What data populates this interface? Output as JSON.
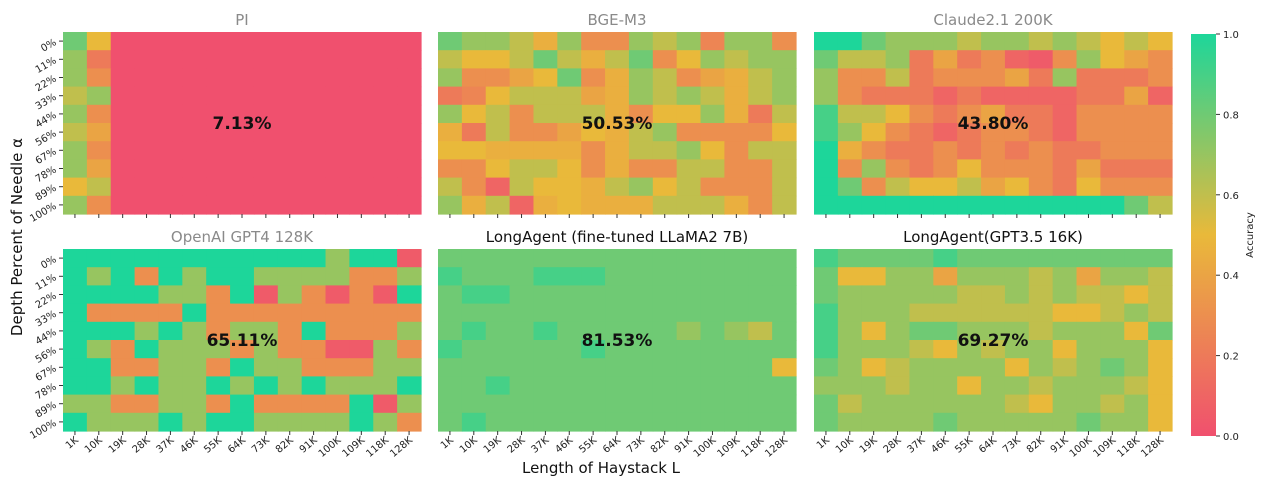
{
  "chart_data": {
    "type": "heatmap",
    "xlabel": "Length of Haystack L",
    "ylabel": "Depth Percent of Needle α",
    "x_ticks": [
      "1K",
      "10K",
      "19K",
      "28K",
      "37K",
      "46K",
      "55K",
      "64K",
      "73K",
      "82K",
      "91K",
      "100K",
      "109K",
      "118K",
      "128K"
    ],
    "y_ticks": [
      "0%",
      "11%",
      "22%",
      "33%",
      "44%",
      "56%",
      "67%",
      "78%",
      "89%",
      "100%"
    ],
    "colorbar": {
      "label": "Accuracy",
      "ticks": [
        "0.0",
        "0.2",
        "0.4",
        "0.6",
        "0.8",
        "1.0"
      ],
      "range": [
        0,
        1
      ]
    },
    "colors": {
      "low": "#f0506e",
      "mid": "#e9b93a",
      "high": "#1dd69a"
    },
    "panels": [
      {
        "title": "PI",
        "title_color": "gray",
        "accuracy_label": "7.13%",
        "values": [
          [
            0.8,
            0.5,
            0,
            0,
            0,
            0,
            0,
            0,
            0,
            0,
            0,
            0,
            0,
            0,
            0
          ],
          [
            0.7,
            0.2,
            0,
            0,
            0,
            0,
            0,
            0,
            0,
            0,
            0,
            0,
            0,
            0,
            0
          ],
          [
            0.7,
            0.3,
            0,
            0,
            0,
            0,
            0,
            0,
            0,
            0,
            0,
            0,
            0,
            0,
            0
          ],
          [
            0.6,
            0.7,
            0,
            0,
            0,
            0,
            0,
            0,
            0,
            0,
            0,
            0,
            0,
            0,
            0
          ],
          [
            0.7,
            0.3,
            0,
            0,
            0,
            0,
            0,
            0,
            0,
            0,
            0,
            0,
            0,
            0,
            0
          ],
          [
            0.6,
            0.4,
            0,
            0,
            0,
            0,
            0,
            0,
            0,
            0,
            0,
            0,
            0,
            0,
            0
          ],
          [
            0.7,
            0.3,
            0,
            0,
            0,
            0,
            0,
            0,
            0,
            0,
            0,
            0,
            0,
            0,
            0
          ],
          [
            0.7,
            0.4,
            0,
            0,
            0,
            0,
            0,
            0,
            0,
            0,
            0,
            0,
            0,
            0,
            0
          ],
          [
            0.5,
            0.6,
            0,
            0,
            0,
            0,
            0,
            0,
            0,
            0,
            0,
            0,
            0,
            0,
            0
          ],
          [
            0.7,
            0.3,
            0,
            0,
            0,
            0,
            0,
            0,
            0,
            0,
            0,
            0,
            0,
            0,
            0
          ]
        ]
      },
      {
        "title": "BGE-M3",
        "title_color": "gray",
        "accuracy_label": "50.53%",
        "values": [
          [
            0.8,
            0.7,
            0.7,
            0.6,
            0.45,
            0.7,
            0.3,
            0.3,
            0.7,
            0.6,
            0.7,
            0.25,
            0.7,
            0.7,
            0.3
          ],
          [
            0.6,
            0.5,
            0.5,
            0.6,
            0.8,
            0.6,
            0.45,
            0.6,
            0.8,
            0.3,
            0.5,
            0.7,
            0.6,
            0.7,
            0.7
          ],
          [
            0.7,
            0.3,
            0.3,
            0.4,
            0.5,
            0.8,
            0.3,
            0.45,
            0.7,
            0.6,
            0.3,
            0.4,
            0.45,
            0.6,
            0.7
          ],
          [
            0.2,
            0.25,
            0.5,
            0.6,
            0.6,
            0.6,
            0.4,
            0.45,
            0.7,
            0.6,
            0.7,
            0.6,
            0.45,
            0.6,
            0.7
          ],
          [
            0.7,
            0.5,
            0.6,
            0.3,
            0.6,
            0.6,
            0.6,
            0.45,
            0.3,
            0.5,
            0.5,
            0.7,
            0.45,
            0.2,
            0.6
          ],
          [
            0.45,
            0.2,
            0.6,
            0.3,
            0.3,
            0.4,
            0.5,
            0.45,
            0.6,
            0.7,
            0.3,
            0.3,
            0.3,
            0.3,
            0.5
          ],
          [
            0.5,
            0.5,
            0.45,
            0.45,
            0.45,
            0.45,
            0.3,
            0.45,
            0.6,
            0.6,
            0.7,
            0.5,
            0.3,
            0.6,
            0.6
          ],
          [
            0.3,
            0.3,
            0.5,
            0.6,
            0.6,
            0.5,
            0.3,
            0.45,
            0.3,
            0.3,
            0.6,
            0.6,
            0.3,
            0.3,
            0.6
          ],
          [
            0.6,
            0.3,
            0.1,
            0.6,
            0.5,
            0.5,
            0.45,
            0.6,
            0.7,
            0.5,
            0.6,
            0.3,
            0.3,
            0.3,
            0.6
          ],
          [
            0.7,
            0.45,
            0.6,
            0.1,
            0.45,
            0.5,
            0.45,
            0.45,
            0.45,
            0.6,
            0.6,
            0.6,
            0.45,
            0.3,
            0.6
          ]
        ]
      },
      {
        "title": "Claude2.1 200K",
        "title_color": "gray",
        "accuracy_label": "43.80%",
        "values": [
          [
            1,
            1,
            0.8,
            0.7,
            0.7,
            0.7,
            0.6,
            0.7,
            0.7,
            0.6,
            0.7,
            0.6,
            0.5,
            0.6,
            0.5
          ],
          [
            0.8,
            0.6,
            0.6,
            0.7,
            0.2,
            0.4,
            0.2,
            0.3,
            0.1,
            0.05,
            0.3,
            0.7,
            0.5,
            0.4,
            0.3
          ],
          [
            0.7,
            0.3,
            0.3,
            0.6,
            0.2,
            0.3,
            0.3,
            0.3,
            0.4,
            0.2,
            0.7,
            0.2,
            0.2,
            0.2,
            0.3
          ],
          [
            0.7,
            0.3,
            0.2,
            0.2,
            0.2,
            0.1,
            0.2,
            0.1,
            0.1,
            0.1,
            0.1,
            0.2,
            0.2,
            0.4,
            0.1
          ],
          [
            0.9,
            0.6,
            0.6,
            0.5,
            0.3,
            0.2,
            0.3,
            0.4,
            0.2,
            0.2,
            0.1,
            0.3,
            0.3,
            0.3,
            0.3
          ],
          [
            0.9,
            0.7,
            0.5,
            0.3,
            0.2,
            0.1,
            0.2,
            0.3,
            0.3,
            0.2,
            0.1,
            0.3,
            0.3,
            0.3,
            0.3
          ],
          [
            1,
            0.45,
            0.3,
            0.2,
            0.2,
            0.3,
            0.2,
            0.3,
            0.2,
            0.3,
            0.2,
            0.2,
            0.3,
            0.3,
            0.3
          ],
          [
            1,
            0.3,
            0.7,
            0.3,
            0.2,
            0.3,
            0.5,
            0.3,
            0.3,
            0.3,
            0.2,
            0.4,
            0.2,
            0.2,
            0.2
          ],
          [
            1,
            0.8,
            0.3,
            0.6,
            0.5,
            0.5,
            0.6,
            0.4,
            0.5,
            0.3,
            0.2,
            0.5,
            0.3,
            0.3,
            0.3
          ],
          [
            1,
            1,
            1,
            1,
            1,
            1,
            1,
            1,
            1,
            1,
            1,
            1,
            1,
            0.8,
            0.6
          ]
        ]
      },
      {
        "title": "OpenAI GPT4 128K",
        "title_color": "gray",
        "accuracy_label": "65.11%",
        "values": [
          [
            1,
            1,
            1,
            1,
            1,
            1,
            1,
            1,
            1,
            1,
            1,
            0.7,
            1,
            1,
            0.05
          ],
          [
            1,
            0.7,
            1,
            0.3,
            1,
            0.7,
            1,
            1,
            0.7,
            0.7,
            0.7,
            0.7,
            0.3,
            0.3,
            0.7
          ],
          [
            1,
            1,
            1,
            1,
            0.7,
            0.7,
            0.3,
            1,
            0.05,
            0.7,
            0.3,
            0.05,
            0.3,
            0.05,
            1
          ],
          [
            1,
            0.3,
            0.3,
            0.3,
            0.3,
            1,
            0.3,
            0.3,
            0.3,
            0.3,
            0.3,
            0.3,
            0.3,
            0.3,
            0.3
          ],
          [
            1,
            1,
            1,
            0.7,
            1,
            0.7,
            0.3,
            0.7,
            0.7,
            0.3,
            1,
            0.3,
            0.3,
            0.3,
            0.7
          ],
          [
            1,
            0.7,
            0.3,
            1,
            0.7,
            0.7,
            0.7,
            0.3,
            0.7,
            0.3,
            0.3,
            0.05,
            0.05,
            0.7,
            0.3
          ],
          [
            1,
            1,
            0.3,
            0.3,
            0.7,
            0.7,
            0.3,
            1,
            0.7,
            0.7,
            0.3,
            0.3,
            0.3,
            0.7,
            0.7
          ],
          [
            1,
            1,
            0.7,
            1,
            0.7,
            0.7,
            1,
            0.7,
            1,
            0.7,
            1,
            0.7,
            0.7,
            0.7,
            1
          ],
          [
            0.7,
            0.7,
            0.3,
            0.3,
            0.7,
            0.7,
            0.3,
            1,
            0.3,
            0.3,
            0.3,
            0.3,
            1,
            0.05,
            0.7
          ],
          [
            1,
            0.7,
            0.7,
            0.7,
            1,
            0.7,
            1,
            1,
            0.7,
            0.7,
            0.7,
            0.7,
            1,
            0.7,
            0.3
          ]
        ]
      },
      {
        "title": "LongAgent (fine-tuned LLaMA2 7B)",
        "title_color": "dark",
        "accuracy_label": "81.53%",
        "values": [
          [
            0.8,
            0.8,
            0.8,
            0.8,
            0.8,
            0.8,
            0.8,
            0.8,
            0.8,
            0.8,
            0.8,
            0.8,
            0.8,
            0.8,
            0.8
          ],
          [
            0.9,
            0.8,
            0.8,
            0.8,
            0.9,
            0.9,
            0.9,
            0.8,
            0.8,
            0.8,
            0.8,
            0.8,
            0.8,
            0.8,
            0.8
          ],
          [
            0.8,
            0.9,
            0.9,
            0.8,
            0.8,
            0.8,
            0.8,
            0.8,
            0.8,
            0.8,
            0.8,
            0.8,
            0.8,
            0.8,
            0.8
          ],
          [
            0.8,
            0.8,
            0.8,
            0.8,
            0.8,
            0.8,
            0.8,
            0.8,
            0.8,
            0.8,
            0.8,
            0.8,
            0.8,
            0.8,
            0.8
          ],
          [
            0.8,
            0.9,
            0.8,
            0.8,
            0.9,
            0.8,
            0.8,
            0.8,
            0.8,
            0.8,
            0.7,
            0.8,
            0.7,
            0.6,
            0.8
          ],
          [
            0.9,
            0.8,
            0.8,
            0.8,
            0.8,
            0.8,
            0.9,
            0.8,
            0.8,
            0.8,
            0.8,
            0.8,
            0.8,
            0.8,
            0.8
          ],
          [
            0.8,
            0.8,
            0.8,
            0.8,
            0.8,
            0.8,
            0.8,
            0.8,
            0.8,
            0.8,
            0.8,
            0.8,
            0.8,
            0.8,
            0.5
          ],
          [
            0.8,
            0.8,
            0.9,
            0.8,
            0.8,
            0.8,
            0.8,
            0.8,
            0.8,
            0.8,
            0.8,
            0.8,
            0.8,
            0.8,
            0.8
          ],
          [
            0.8,
            0.8,
            0.8,
            0.8,
            0.8,
            0.8,
            0.8,
            0.8,
            0.8,
            0.8,
            0.8,
            0.8,
            0.8,
            0.8,
            0.8
          ],
          [
            0.8,
            0.9,
            0.8,
            0.8,
            0.8,
            0.8,
            0.8,
            0.8,
            0.8,
            0.8,
            0.8,
            0.8,
            0.8,
            0.8,
            0.8
          ]
        ]
      },
      {
        "title": "LongAgent(GPT3.5 16K)",
        "title_color": "dark",
        "accuracy_label": "69.27%",
        "values": [
          [
            0.9,
            0.8,
            0.8,
            0.8,
            0.8,
            0.9,
            0.8,
            0.8,
            0.8,
            0.8,
            0.8,
            0.8,
            0.8,
            0.8,
            0.8
          ],
          [
            0.8,
            0.5,
            0.5,
            0.7,
            0.7,
            0.4,
            0.7,
            0.7,
            0.7,
            0.6,
            0.7,
            0.4,
            0.7,
            0.7,
            0.6
          ],
          [
            0.8,
            0.7,
            0.7,
            0.7,
            0.7,
            0.7,
            0.6,
            0.6,
            0.7,
            0.6,
            0.7,
            0.6,
            0.6,
            0.5,
            0.6
          ],
          [
            0.9,
            0.7,
            0.7,
            0.7,
            0.6,
            0.6,
            0.6,
            0.6,
            0.6,
            0.6,
            0.5,
            0.5,
            0.6,
            0.7,
            0.6
          ],
          [
            0.9,
            0.7,
            0.5,
            0.7,
            0.8,
            0.8,
            0.7,
            0.7,
            0.7,
            0.6,
            0.7,
            0.7,
            0.7,
            0.5,
            0.8
          ],
          [
            0.9,
            0.7,
            0.7,
            0.7,
            0.6,
            0.5,
            0.7,
            0.6,
            0.7,
            0.7,
            0.5,
            0.7,
            0.7,
            0.7,
            0.5
          ],
          [
            0.8,
            0.7,
            0.5,
            0.6,
            0.7,
            0.7,
            0.7,
            0.7,
            0.5,
            0.7,
            0.6,
            0.7,
            0.8,
            0.7,
            0.5
          ],
          [
            0.7,
            0.7,
            0.7,
            0.6,
            0.7,
            0.7,
            0.5,
            0.7,
            0.7,
            0.6,
            0.7,
            0.7,
            0.7,
            0.6,
            0.5
          ],
          [
            0.8,
            0.6,
            0.7,
            0.7,
            0.7,
            0.7,
            0.7,
            0.7,
            0.6,
            0.5,
            0.7,
            0.7,
            0.6,
            0.7,
            0.5
          ],
          [
            0.8,
            0.7,
            0.7,
            0.7,
            0.7,
            0.8,
            0.7,
            0.7,
            0.7,
            0.7,
            0.7,
            0.8,
            0.7,
            0.7,
            0.5
          ]
        ]
      }
    ]
  }
}
